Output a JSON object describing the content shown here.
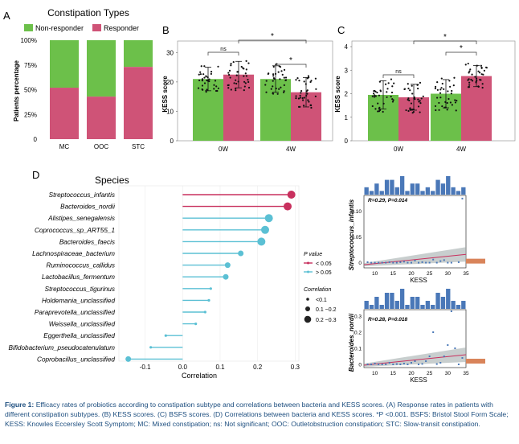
{
  "panels": {
    "a": {
      "letter": "A",
      "title": "Constipation Types"
    },
    "b": {
      "letter": "B"
    },
    "c": {
      "letter": "C"
    },
    "d": {
      "letter": "D",
      "title": "Species"
    }
  },
  "caption": {
    "label": "Figure 1:",
    "text": "Efficacy rates of probiotics according to constipation subtype and correlations between bacteria and KESS scores. (A) Response rates in patients with different constipation subtypes. (B) KESS scores. (C) BSFS scores. (D) Correlations between bacteria and KESS scores. *P <0.001. BSFS: Bristol Stool Form Scale; KESS: Knowles Eccersley Scott Symptom; MC: Mixed constipation; ns: Not significant; OOC: Outletobstruction constipation; STC: Slow-transit constipation."
  },
  "colors": {
    "green": "#6cc04a",
    "pink": "#cf5377",
    "teal": "#5bc0d4",
    "crimson": "#c8305e",
    "blue": "#4a78b8",
    "orange": "#d9845a"
  },
  "chart_data": [
    {
      "id": "A",
      "type": "bar",
      "stacked": true,
      "title": "Constipation Types",
      "categories": [
        "MC",
        "OOC",
        "STC"
      ],
      "series": [
        {
          "name": "Responder",
          "values": [
            52,
            43,
            73
          ]
        },
        {
          "name": "Non-responder",
          "values": [
            48,
            57,
            27
          ]
        }
      ],
      "ylabel": "Patients percentage",
      "yticks": [
        "0",
        "25%",
        "50%",
        "75%",
        "100%"
      ],
      "ylim": [
        0,
        100
      ]
    },
    {
      "id": "B",
      "type": "bar",
      "categories": [
        "0W",
        "4W"
      ],
      "series": [
        {
          "name": "Non-responder",
          "values": [
            21,
            21
          ],
          "errors": [
            4,
            4.5
          ]
        },
        {
          "name": "Responder",
          "values": [
            22.5,
            16.5
          ],
          "errors": [
            4.5,
            5
          ]
        }
      ],
      "ylabel": "KESS score",
      "yticks": [
        "0",
        "10",
        "20",
        "30"
      ],
      "ylim": [
        0,
        32
      ],
      "annotations": {
        "within_0W": "ns",
        "within_4W": "*",
        "between_responder": "*"
      }
    },
    {
      "id": "C",
      "type": "bar",
      "categories": [
        "0W",
        "4W"
      ],
      "series": [
        {
          "name": "Non-responder",
          "values": [
            1.95,
            2.0
          ],
          "errors": [
            0.6,
            0.6
          ]
        },
        {
          "name": "Responder",
          "values": [
            1.85,
            2.75
          ],
          "errors": [
            0.55,
            0.45
          ]
        }
      ],
      "ylabel": "KESS score",
      "yticks": [
        "0",
        "1",
        "2",
        "3",
        "4"
      ],
      "ylim": [
        0,
        4
      ],
      "annotations": {
        "within_0W": "ns",
        "within_4W": "*",
        "between_responder": "*"
      }
    },
    {
      "id": "D",
      "type": "lollipop",
      "title": "Species",
      "categories": [
        "Streptococcus_infantis",
        "Bacteroides_nordii",
        "Alistipes_senegalensis",
        "Coprococcus_sp_ART55_1",
        "Bacteroides_faecis",
        "Lachnospiraceae_bacterium",
        "Ruminococcus_callidus",
        "Lactobacillus_fermentum",
        "Streptococcus_tigurinus",
        "Holdemania_unclassified",
        "Paraprevotella_unclassified",
        "Weissella_unclassified",
        "Eggerthella_unclassified",
        "Bifidobacterium_pseudocatenulatum",
        "Coprobacillus_unclassified"
      ],
      "values": [
        0.29,
        0.28,
        0.23,
        0.22,
        0.21,
        0.155,
        0.12,
        0.115,
        0.075,
        0.07,
        0.06,
        0.035,
        -0.045,
        -0.085,
        -0.145
      ],
      "significant": [
        true,
        true,
        false,
        false,
        false,
        false,
        false,
        false,
        false,
        false,
        false,
        false,
        false,
        false,
        false
      ],
      "xlabel": "Correlation",
      "xticks": [
        "-0.1",
        "0.0",
        "0.1",
        "0.2",
        "0.3"
      ],
      "xlim": [
        -0.17,
        0.31
      ],
      "legend_p": {
        "title": "P value",
        "items": [
          "< 0.05",
          "> 0.05"
        ]
      },
      "legend_corr": {
        "title": "Correlation",
        "items": [
          "<0.1",
          "0.1 ~0.2",
          "0.2 ~0.3"
        ]
      }
    },
    {
      "id": "D1",
      "type": "scatter",
      "annotation": "R=0.29, P=0.014",
      "ylabel": "Streptococcus_infantis",
      "xlabel": "KESS",
      "xticks": [
        "10",
        "15",
        "20",
        "25",
        "30",
        "35"
      ],
      "yticks": [
        "0",
        "0.05",
        "0.10"
      ],
      "xlim": [
        7,
        35
      ],
      "ylim": [
        -0.01,
        0.13
      ],
      "points": [
        [
          8,
          0.001
        ],
        [
          9,
          0
        ],
        [
          10,
          0
        ],
        [
          11,
          0
        ],
        [
          12,
          0
        ],
        [
          13,
          0
        ],
        [
          14,
          0.001
        ],
        [
          15,
          0
        ],
        [
          16,
          0
        ],
        [
          17,
          0.001
        ],
        [
          18,
          0.002
        ],
        [
          19,
          0
        ],
        [
          20,
          0
        ],
        [
          21,
          0.004
        ],
        [
          22,
          0
        ],
        [
          23,
          0.001
        ],
        [
          24,
          0
        ],
        [
          25,
          0
        ],
        [
          26,
          0.006
        ],
        [
          27,
          0
        ],
        [
          28,
          0.003
        ],
        [
          29,
          0.005
        ],
        [
          30,
          0
        ],
        [
          31,
          0
        ],
        [
          33,
          0.001
        ],
        [
          34,
          0.124
        ]
      ],
      "fit": [
        [
          7,
          -0.004
        ],
        [
          35,
          0.016
        ]
      ],
      "hist_top": [
        2,
        1,
        3,
        1,
        4,
        4,
        2,
        5,
        1,
        3,
        3,
        1,
        2,
        1,
        4,
        3,
        5,
        2,
        1,
        2
      ]
    },
    {
      "id": "D2",
      "type": "scatter",
      "annotation": "R=0.28, P=0.018",
      "ylabel": "Bacteroides_nordii",
      "xlabel": "KESS",
      "xticks": [
        "10",
        "15",
        "20",
        "25",
        "30",
        "35"
      ],
      "yticks": [
        "0",
        "0.1",
        "0.2",
        "0.3"
      ],
      "xlim": [
        7,
        35
      ],
      "ylim": [
        -0.02,
        0.34
      ],
      "points": [
        [
          8,
          0
        ],
        [
          9,
          0
        ],
        [
          10,
          0.005
        ],
        [
          11,
          0
        ],
        [
          12,
          0
        ],
        [
          13,
          0
        ],
        [
          14,
          0.01
        ],
        [
          15,
          0
        ],
        [
          16,
          0.002
        ],
        [
          17,
          0
        ],
        [
          18,
          0.005
        ],
        [
          19,
          0
        ],
        [
          20,
          0.01
        ],
        [
          21,
          0.02
        ],
        [
          22,
          0
        ],
        [
          23,
          0.003
        ],
        [
          24,
          0.02
        ],
        [
          25,
          0.05
        ],
        [
          26,
          0.2
        ],
        [
          27,
          0.002
        ],
        [
          28,
          0.01
        ],
        [
          29,
          0.05
        ],
        [
          30,
          0.12
        ],
        [
          31,
          0.33
        ],
        [
          32,
          0.1
        ],
        [
          33,
          0
        ],
        [
          34,
          0.04
        ]
      ],
      "fit": [
        [
          7,
          -0.005
        ],
        [
          35,
          0.06
        ]
      ],
      "hist_top": [
        2,
        1,
        3,
        1,
        4,
        4,
        2,
        5,
        1,
        3,
        3,
        1,
        2,
        1,
        4,
        3,
        5,
        2,
        1,
        2
      ]
    }
  ]
}
